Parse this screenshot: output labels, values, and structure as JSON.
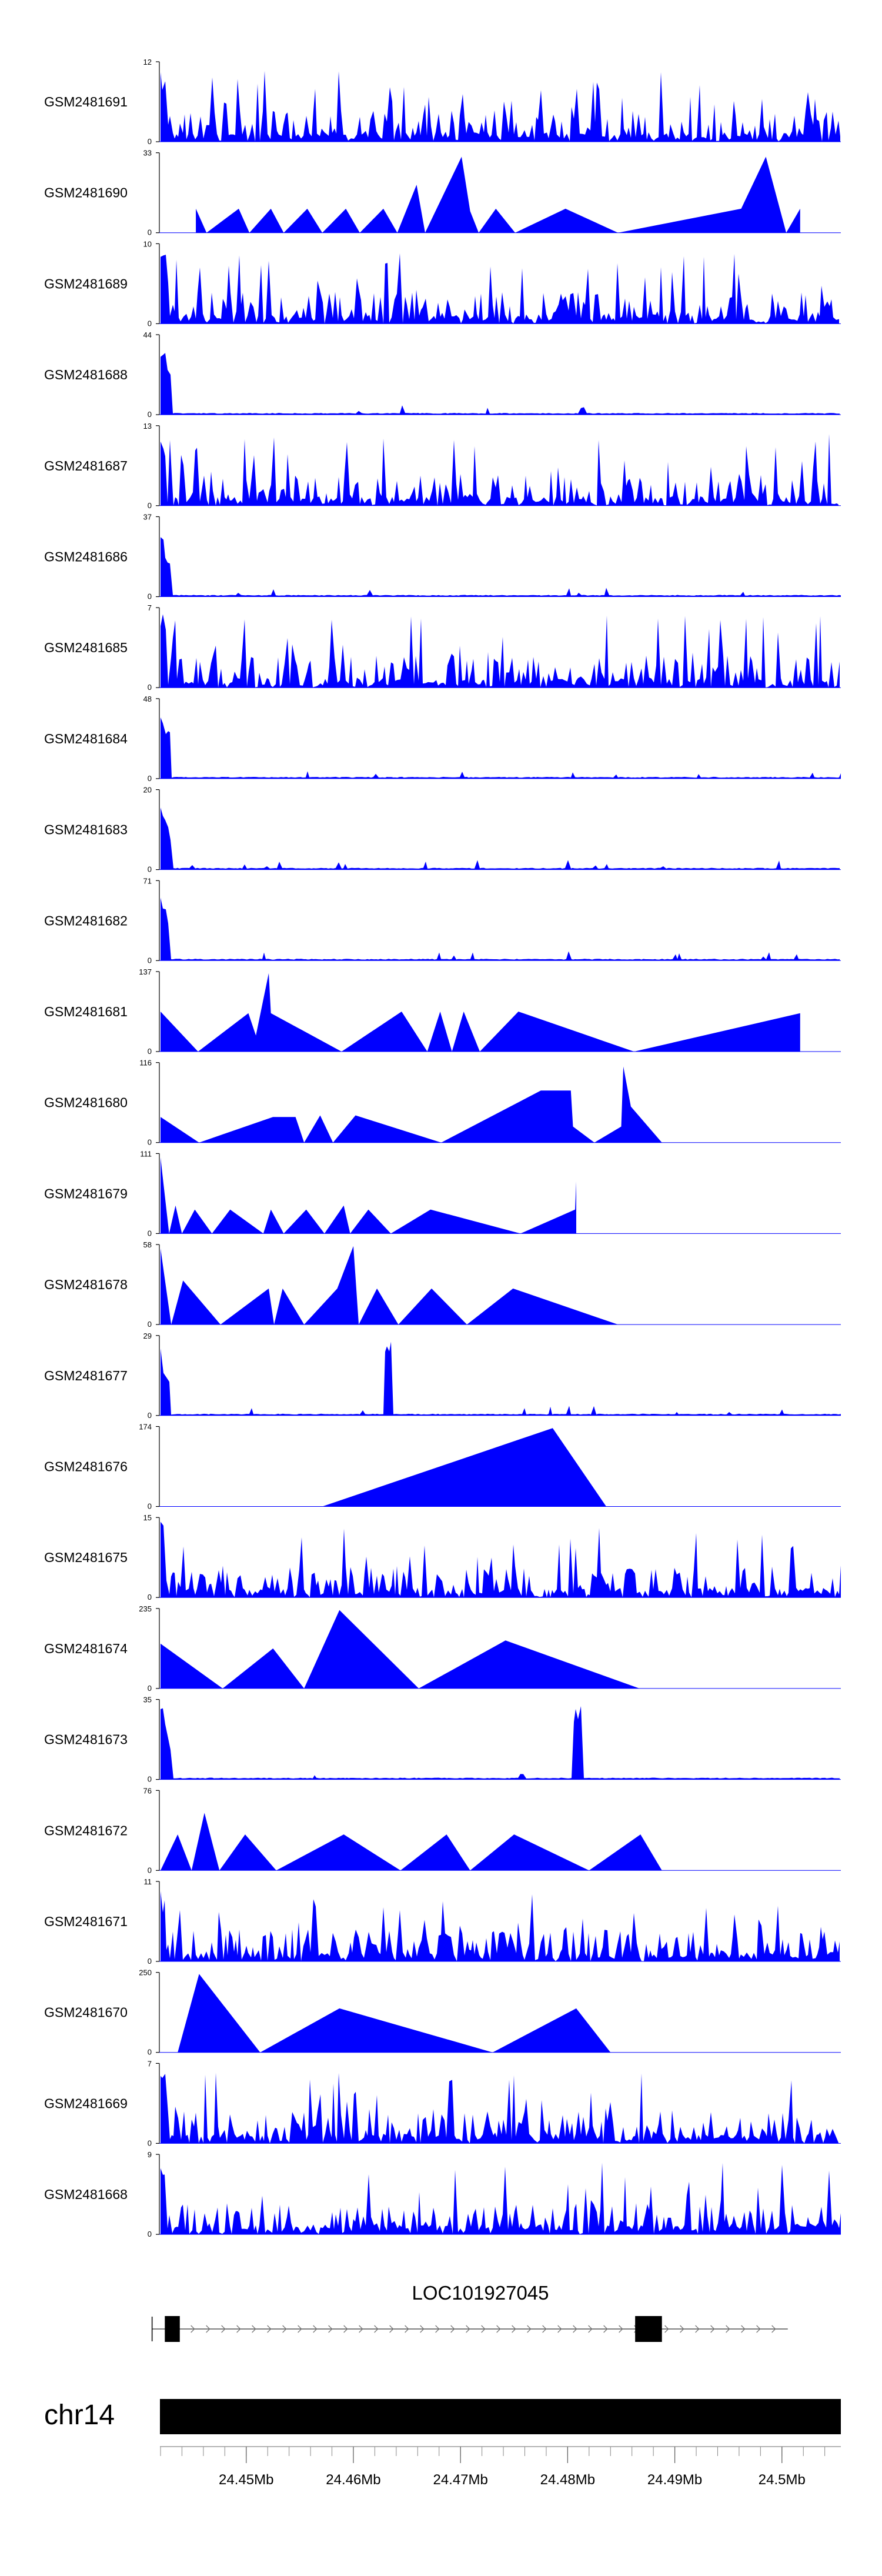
{
  "chart_data": {
    "type": "area",
    "title": "",
    "colors": {
      "signal": "#0000ff",
      "gene": "#000000",
      "axis": "#000000"
    },
    "tracks": [
      {
        "name": "GSM2481691",
        "ymax": "12",
        "pattern": "dense",
        "seed": 1
      },
      {
        "name": "GSM2481690",
        "ymax": "33",
        "pattern": "sparse",
        "seed": 2,
        "points": [
          [
            24.4453,
            0.3
          ],
          [
            24.4463,
            0
          ],
          [
            24.4493,
            0.3
          ],
          [
            24.4503,
            0
          ],
          [
            24.4523,
            0.3
          ],
          [
            24.4535,
            0
          ],
          [
            24.4557,
            0.3
          ],
          [
            24.4571,
            0
          ],
          [
            24.4593,
            0.3
          ],
          [
            24.4606,
            0
          ],
          [
            24.4628,
            0.3
          ],
          [
            24.4641,
            0
          ],
          [
            24.4659,
            0.6
          ],
          [
            24.4667,
            0
          ],
          [
            24.4701,
            0.95
          ],
          [
            24.4709,
            0.27
          ],
          [
            24.4717,
            0
          ],
          [
            24.4733,
            0.3
          ],
          [
            24.4751,
            0
          ],
          [
            24.4798,
            0.3
          ],
          [
            24.4847,
            0
          ],
          [
            24.4962,
            0.3
          ],
          [
            24.4985,
            0.95
          ],
          [
            24.5004,
            0
          ],
          [
            24.5017,
            0.3
          ]
        ]
      },
      {
        "name": "GSM2481689",
        "ymax": "10",
        "pattern": "dense",
        "seed": 3
      },
      {
        "name": "GSM2481688",
        "ymax": "44",
        "pattern": "decay",
        "seed": 4
      },
      {
        "name": "GSM2481687",
        "ymax": "13",
        "pattern": "dense",
        "seed": 5
      },
      {
        "name": "GSM2481686",
        "ymax": "37",
        "pattern": "decay",
        "seed": 6
      },
      {
        "name": "GSM2481685",
        "ymax": "7",
        "pattern": "dense",
        "seed": 7
      },
      {
        "name": "GSM2481684",
        "ymax": "48",
        "pattern": "decay",
        "seed": 8
      },
      {
        "name": "GSM2481683",
        "ymax": "20",
        "pattern": "decay",
        "seed": 9
      },
      {
        "name": "GSM2481682",
        "ymax": "71",
        "pattern": "decay",
        "seed": 10
      },
      {
        "name": "GSM2481681",
        "ymax": "137",
        "pattern": "sparse",
        "seed": 11,
        "points": [
          [
            24.442,
            0.5
          ],
          [
            24.4455,
            0
          ],
          [
            24.4502,
            0.48
          ],
          [
            24.4509,
            0.2
          ],
          [
            24.4521,
            0.98
          ],
          [
            24.4523,
            0.48
          ],
          [
            24.4589,
            0
          ],
          [
            24.4645,
            0.5
          ],
          [
            24.4669,
            0
          ],
          [
            24.4681,
            0.5
          ],
          [
            24.4692,
            0
          ],
          [
            24.4703,
            0.5
          ],
          [
            24.4718,
            0
          ],
          [
            24.4754,
            0.5
          ],
          [
            24.4862,
            0
          ],
          [
            24.5017,
            0.48
          ]
        ]
      },
      {
        "name": "GSM2481680",
        "ymax": "116",
        "pattern": "sparse",
        "seed": 12,
        "points": [
          [
            24.442,
            0.32
          ],
          [
            24.4456,
            0
          ],
          [
            24.4525,
            0.32
          ],
          [
            24.4546,
            0.32
          ],
          [
            24.4554,
            0
          ],
          [
            24.4569,
            0.34
          ],
          [
            24.4581,
            0
          ],
          [
            24.4602,
            0.34
          ],
          [
            24.4682,
            0
          ],
          [
            24.4775,
            0.65
          ],
          [
            24.4803,
            0.65
          ],
          [
            24.4805,
            0.2
          ],
          [
            24.4825,
            0
          ],
          [
            24.485,
            0.2
          ],
          [
            24.4852,
            0.95
          ],
          [
            24.4859,
            0.45
          ],
          [
            24.4888,
            0
          ]
        ]
      },
      {
        "name": "GSM2481679",
        "ymax": "111",
        "pattern": "sparse",
        "seed": 13,
        "points": [
          [
            24.442,
            0.95
          ],
          [
            24.4428,
            0
          ],
          [
            24.4434,
            0.35
          ],
          [
            24.444,
            0
          ],
          [
            24.4452,
            0.3
          ],
          [
            24.4468,
            0
          ],
          [
            24.4485,
            0.3
          ],
          [
            24.4516,
            0
          ],
          [
            24.4523,
            0.3
          ],
          [
            24.4535,
            0
          ],
          [
            24.4556,
            0.3
          ],
          [
            24.4573,
            0
          ],
          [
            24.4591,
            0.35
          ],
          [
            24.4597,
            0
          ],
          [
            24.4614,
            0.3
          ],
          [
            24.4635,
            0
          ],
          [
            24.4672,
            0.3
          ],
          [
            24.4756,
            0
          ],
          [
            24.4807,
            0.3
          ],
          [
            24.4808,
            0.65
          ]
        ]
      },
      {
        "name": "GSM2481678",
        "ymax": "58",
        "pattern": "sparse",
        "seed": 14,
        "points": [
          [
            24.442,
            0.95
          ],
          [
            24.443,
            0
          ],
          [
            24.4441,
            0.55
          ],
          [
            24.4476,
            0
          ],
          [
            24.4521,
            0.45
          ],
          [
            24.4526,
            0
          ],
          [
            24.4534,
            0.45
          ],
          [
            24.4554,
            0
          ],
          [
            24.4585,
            0.45
          ],
          [
            24.46,
            0.98
          ],
          [
            24.4605,
            0
          ],
          [
            24.4622,
            0.45
          ],
          [
            24.4642,
            0
          ],
          [
            24.4673,
            0.45
          ],
          [
            24.4706,
            0
          ],
          [
            24.4749,
            0.45
          ],
          [
            24.4847,
            0
          ]
        ]
      },
      {
        "name": "GSM2481677",
        "ymax": "29",
        "pattern": "decay",
        "seed": 15
      },
      {
        "name": "GSM2481676",
        "ymax": "174",
        "pattern": "sparse",
        "seed": 16,
        "points": [
          [
            24.4571,
            0
          ],
          [
            24.4786,
            0.98
          ],
          [
            24.4836,
            0
          ]
        ]
      },
      {
        "name": "GSM2481675",
        "ymax": "15",
        "pattern": "dense",
        "seed": 17
      },
      {
        "name": "GSM2481674",
        "ymax": "235",
        "pattern": "sparse",
        "seed": 18,
        "points": [
          [
            24.442,
            0.56
          ],
          [
            24.4478,
            0
          ],
          [
            24.4525,
            0.5
          ],
          [
            24.4554,
            0
          ],
          [
            24.4587,
            0.98
          ],
          [
            24.4661,
            0
          ],
          [
            24.4742,
            0.6
          ],
          [
            24.4867,
            0
          ]
        ]
      },
      {
        "name": "GSM2481673",
        "ymax": "35",
        "pattern": "decay",
        "seed": 19
      },
      {
        "name": "GSM2481672",
        "ymax": "76",
        "pattern": "sparse",
        "seed": 20,
        "points": [
          [
            24.442,
            0
          ],
          [
            24.4436,
            0.45
          ],
          [
            24.4449,
            0
          ],
          [
            24.4461,
            0.72
          ],
          [
            24.4475,
            0
          ],
          [
            24.4499,
            0.45
          ],
          [
            24.4528,
            0
          ],
          [
            24.4591,
            0.45
          ],
          [
            24.4644,
            0
          ],
          [
            24.4687,
            0.45
          ],
          [
            24.4709,
            0
          ],
          [
            24.475,
            0.45
          ],
          [
            24.482,
            0
          ],
          [
            24.4868,
            0.45
          ],
          [
            24.4888,
            0
          ]
        ]
      },
      {
        "name": "GSM2481671",
        "ymax": "11",
        "pattern": "dense",
        "seed": 21
      },
      {
        "name": "GSM2481670",
        "ymax": "250",
        "pattern": "sparse",
        "seed": 22,
        "points": [
          [
            24.4436,
            0
          ],
          [
            24.4456,
            0.98
          ],
          [
            24.4513,
            0
          ],
          [
            24.4587,
            0.55
          ],
          [
            24.473,
            0
          ],
          [
            24.4808,
            0.55
          ],
          [
            24.484,
            0
          ]
        ]
      },
      {
        "name": "GSM2481669",
        "ymax": "7",
        "pattern": "dense",
        "seed": 23
      },
      {
        "name": "GSM2481668",
        "ymax": "9",
        "pattern": "dense",
        "seed": 24
      }
    ],
    "gene": {
      "name": "LOC101927045",
      "start": 24.4422,
      "end": 24.5,
      "exon1": [
        24.4424,
        24.4438
      ],
      "exon2": [
        24.4863,
        24.4888
      ],
      "strand": "+"
    },
    "chromosome": "chr14",
    "xlim": [
      24.442,
      24.5055
    ],
    "ticks": [
      {
        "value": 24.45,
        "label": "24.45Mb"
      },
      {
        "value": 24.46,
        "label": "24.46Mb"
      },
      {
        "value": 24.47,
        "label": "24.47Mb"
      },
      {
        "value": 24.48,
        "label": "24.48Mb"
      },
      {
        "value": 24.49,
        "label": "24.49Mb"
      },
      {
        "value": 24.5,
        "label": "24.5Mb"
      }
    ],
    "minor_tick_step": 0.002,
    "ymin_label": "0"
  }
}
